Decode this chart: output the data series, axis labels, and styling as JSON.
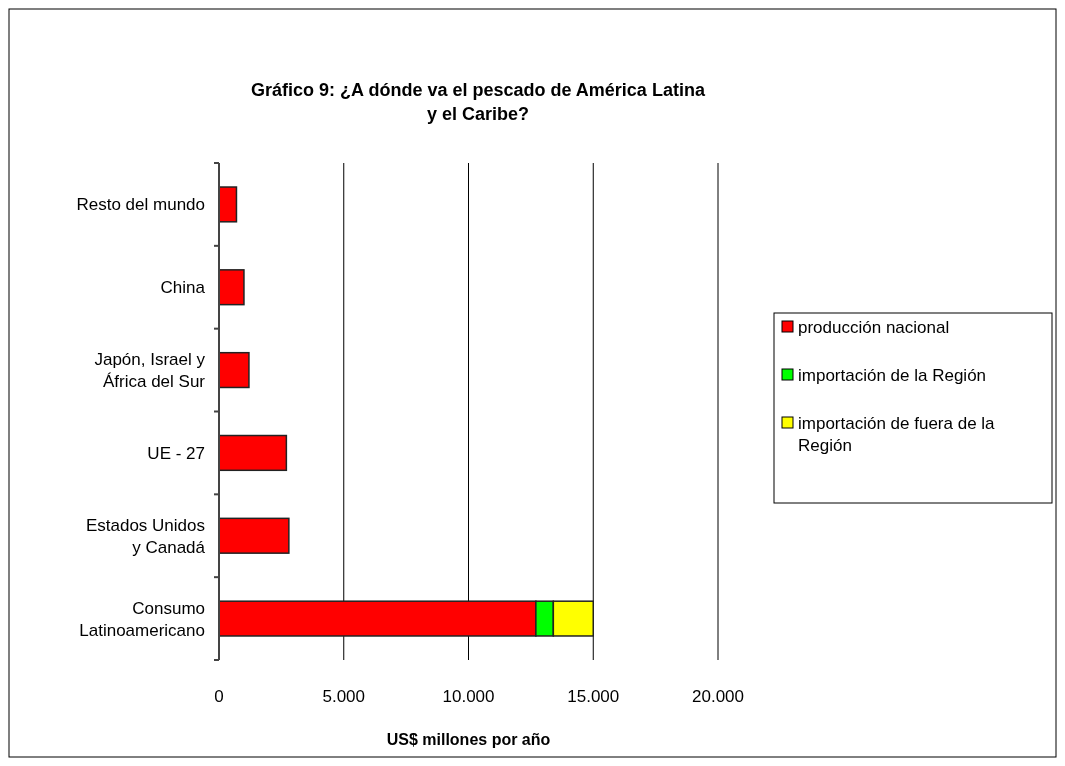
{
  "chart_data": {
    "type": "bar",
    "orientation": "horizontal",
    "stacked": true,
    "title": "Gráfico 9: ¿A dónde va el pescado de América Latina y el Caribe?",
    "xlabel": "US$ millones por año",
    "categories": [
      "Resto del mundo",
      "China",
      "Japón, Israel y África del Sur",
      "UE - 27",
      "Estados Unidos y Canadá",
      "Consumo Latinoamericano"
    ],
    "series": [
      {
        "name": "producción nacional",
        "color": "#ff0000",
        "values": [
          700,
          1000,
          1200,
          2700,
          2800,
          12700
        ]
      },
      {
        "name": "importación de la Región",
        "color": "#00ff00",
        "values": [
          null,
          null,
          null,
          null,
          null,
          700
        ]
      },
      {
        "name": "importación de fuera de la Región",
        "color": "#ffff00",
        "values": [
          null,
          null,
          null,
          null,
          null,
          1600
        ]
      }
    ],
    "xlim": [
      0,
      20000
    ],
    "xticks": [
      {
        "value": 0,
        "label": "0"
      },
      {
        "value": 5000,
        "label": "5.000"
      },
      {
        "value": 10000,
        "label": "10.000"
      },
      {
        "value": 15000,
        "label": "15.000"
      },
      {
        "value": 20000,
        "label": "20.000"
      }
    ],
    "grid": "x",
    "legend": "right"
  }
}
